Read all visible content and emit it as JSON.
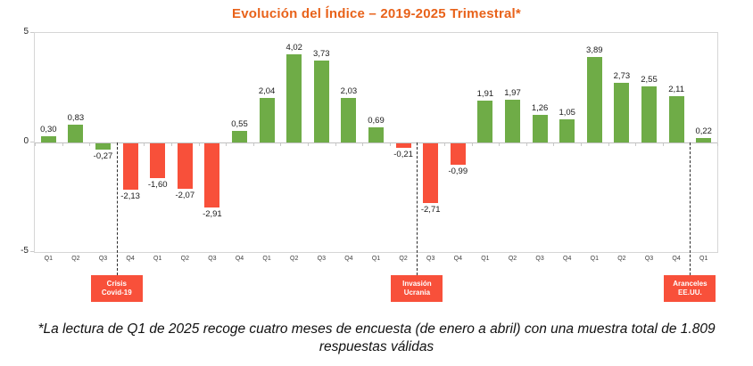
{
  "chart": {
    "title": "Evolución del Índice – 2019-2025 Trimestral*",
    "footnote": "*La lectura de Q1 de 2025 recoge cuatro meses de encuesta (de enero a abril) con una muestra total de 1.809 respuestas válidas"
  },
  "chart_data": {
    "type": "bar",
    "title": "Evolución del Índice – 2019-2025 Trimestral*",
    "categories": [
      "Q1",
      "Q2",
      "Q3",
      "Q4",
      "Q1",
      "Q2",
      "Q3",
      "Q4",
      "Q1",
      "Q2",
      "Q3",
      "Q4",
      "Q1",
      "Q2",
      "Q3",
      "Q4",
      "Q1",
      "Q2",
      "Q3",
      "Q4",
      "Q1",
      "Q2",
      "Q3",
      "Q4",
      "Q1"
    ],
    "values": [
      0.3,
      0.83,
      -0.27,
      -2.13,
      -1.6,
      -2.07,
      -2.91,
      0.55,
      2.04,
      4.02,
      3.73,
      2.03,
      0.69,
      -0.21,
      -2.71,
      -0.99,
      1.91,
      1.97,
      1.26,
      1.05,
      3.89,
      2.73,
      2.55,
      2.11,
      0.22
    ],
    "value_labels": [
      "0,30",
      "0,83",
      "-0,27",
      "-2,13",
      "-1,60",
      "-2,07",
      "-2,91",
      "0,55",
      "2,04",
      "4,02",
      "3,73",
      "2,03",
      "0,69",
      "-0,21",
      "-2,71",
      "-0,99",
      "1,91",
      "1,97",
      "1,26",
      "1,05",
      "3,89",
      "2,73",
      "2,55",
      "2,11",
      "0,22"
    ],
    "bar_colors": [
      "green",
      "green",
      "green",
      "red",
      "red",
      "red",
      "red",
      "green",
      "green",
      "green",
      "green",
      "green",
      "green",
      "red",
      "red",
      "red",
      "green",
      "green",
      "green",
      "green",
      "green",
      "green",
      "green",
      "green",
      "green"
    ],
    "ylim": [
      -5,
      5
    ],
    "y_ticks": [
      "5",
      "0",
      "-5"
    ],
    "grid": false,
    "legend": "none",
    "xlabel": "",
    "ylabel": "",
    "annotations": [
      {
        "after_index": 2,
        "label_lines": [
          "Crisis",
          "Covid-19"
        ]
      },
      {
        "after_index": 13,
        "label_lines": [
          "Invasión",
          "Ucrania"
        ]
      },
      {
        "after_index": 23,
        "label_lines": [
          "Aranceles",
          "EE.UU."
        ]
      }
    ],
    "colors": {
      "bar_green": "#6fac47",
      "bar_red": "#f8503a",
      "annotation_box_red": "#f8503a",
      "title_orange": "#e8621a",
      "plot_border_gray": "#d6d6d6",
      "zero_line_gray": "#bfbfbf"
    }
  }
}
